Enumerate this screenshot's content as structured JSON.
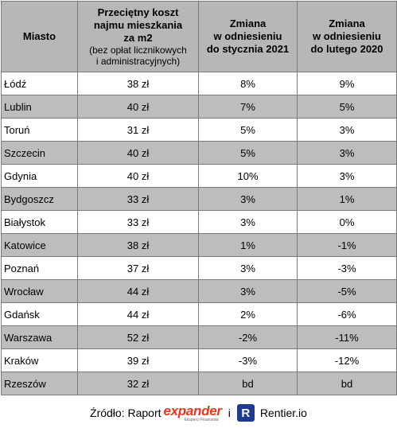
{
  "header": {
    "col1": "Miasto",
    "col2_line1": "Przeciętny koszt",
    "col2_line2": "najmu mieszkania",
    "col2_line3": "za m2",
    "col2_sub1": "(bez opłat licznikowych",
    "col2_sub2": "i administracyjnych)",
    "col3_line1": "Zmiana",
    "col3_line2": "w odniesieniu",
    "col3_line3": "do stycznia 2021",
    "col4_line1": "Zmiana",
    "col4_line2": "w odniesieniu",
    "col4_line3": "do lutego 2020"
  },
  "rows": [
    {
      "city": "Łódź",
      "cost": "38 zł",
      "jan2021": "8%",
      "feb2020": "9%"
    },
    {
      "city": "Lublin",
      "cost": "40 zł",
      "jan2021": "7%",
      "feb2020": "5%"
    },
    {
      "city": "Toruń",
      "cost": "31 zł",
      "jan2021": "5%",
      "feb2020": "3%"
    },
    {
      "city": "Szczecin",
      "cost": "40 zł",
      "jan2021": "5%",
      "feb2020": "3%"
    },
    {
      "city": "Gdynia",
      "cost": "40 zł",
      "jan2021": "10%",
      "feb2020": "3%"
    },
    {
      "city": "Bydgoszcz",
      "cost": "33 zł",
      "jan2021": "3%",
      "feb2020": "1%"
    },
    {
      "city": "Białystok",
      "cost": "33 zł",
      "jan2021": "3%",
      "feb2020": "0%"
    },
    {
      "city": "Katowice",
      "cost": "38 zł",
      "jan2021": "1%",
      "feb2020": "-1%"
    },
    {
      "city": "Poznań",
      "cost": "37 zł",
      "jan2021": "3%",
      "feb2020": "-3%"
    },
    {
      "city": "Wrocław",
      "cost": "44 zł",
      "jan2021": "3%",
      "feb2020": "-5%"
    },
    {
      "city": "Gdańsk",
      "cost": "44 zł",
      "jan2021": "2%",
      "feb2020": "-6%"
    },
    {
      "city": "Warszawa",
      "cost": "52 zł",
      "jan2021": "-2%",
      "feb2020": "-11%"
    },
    {
      "city": "Kraków",
      "cost": "39 zł",
      "jan2021": "-3%",
      "feb2020": "-12%"
    },
    {
      "city": "Rzeszów",
      "cost": "32 zł",
      "jan2021": "bd",
      "feb2020": "bd"
    }
  ],
  "footer": {
    "source_label": "Źródło: Raport",
    "expander_logo": "expander",
    "expander_tag": "Eksperci Finansowi",
    "conjunction": "i",
    "rentier_icon": "R",
    "rentier_name": "Rentier.io"
  }
}
